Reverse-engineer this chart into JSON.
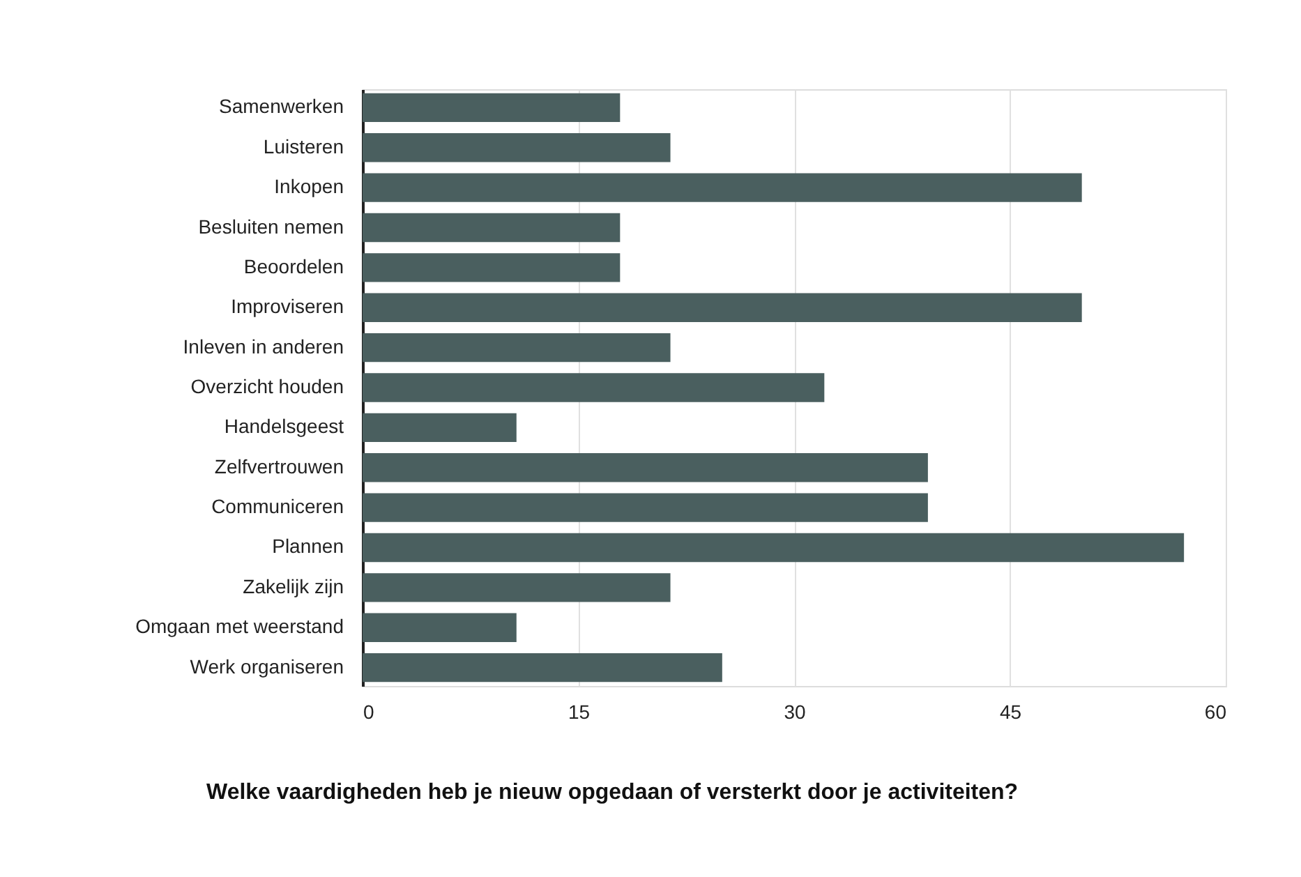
{
  "chart_data": {
    "type": "bar",
    "orientation": "horizontal",
    "title": "Welke vaardigheden heb je nieuw opgedaan of versterkt door je activiteiten?",
    "categories": [
      "Samenwerken",
      "Luisteren",
      "Inkopen",
      "Besluiten nemen",
      "Beoordelen",
      "Improviseren",
      "Inleven in anderen",
      "Overzicht houden",
      "Handelsgeest",
      "Zelfvertrouwen",
      "Communiceren",
      "Plannen",
      "Zakelijk zijn",
      "Omgaan met weerstand",
      "Werk organiseren"
    ],
    "values": [
      17.9,
      21.4,
      50,
      17.9,
      17.9,
      50,
      21.4,
      32.1,
      10.7,
      39.3,
      39.3,
      57.1,
      21.4,
      10.7,
      25
    ],
    "color": "#4a5f5f",
    "xlim": [
      0,
      60
    ],
    "xticks": [
      0,
      15,
      30,
      45,
      60
    ],
    "grid": "x"
  }
}
